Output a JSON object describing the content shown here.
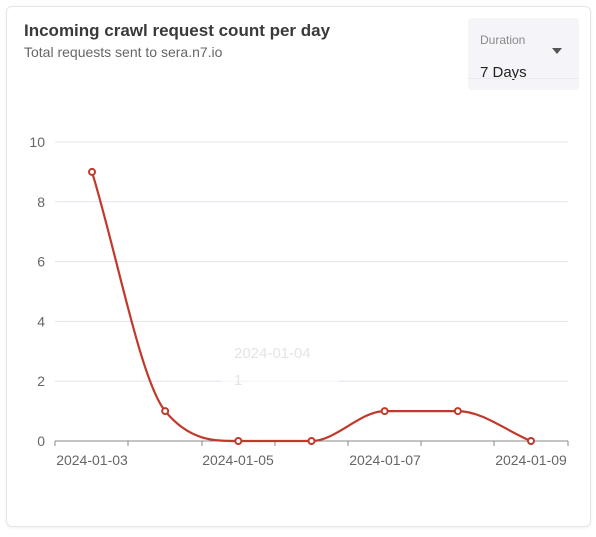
{
  "header": {
    "title": "Incoming crawl request count per day",
    "subtitle": "Total requests sent to sera.n7.io"
  },
  "duration_select": {
    "label": "Duration",
    "value": "7 Days",
    "icon": "caret-down-icon"
  },
  "tooltip": {
    "title": "2024-01-04",
    "value": "1"
  },
  "colors": {
    "series": "#c0392b",
    "grid": "#e3e3ee",
    "axis": "#888888"
  },
  "chart_data": {
    "type": "line",
    "x": [
      "2024-01-03",
      "2024-01-04",
      "2024-01-05",
      "2024-01-06",
      "2024-01-07",
      "2024-01-08",
      "2024-01-09"
    ],
    "series": [
      {
        "values": [
          9,
          1,
          0,
          0,
          1,
          1,
          0
        ]
      }
    ],
    "x_tick_labels": [
      "2024-01-03",
      "2024-01-05",
      "2024-01-07",
      "2024-01-09"
    ],
    "y_ticks": [
      0,
      2,
      4,
      6,
      8,
      10
    ],
    "ylim": [
      0,
      10
    ],
    "grid": true,
    "curve": "smooth",
    "markers": "hollow-circle"
  }
}
